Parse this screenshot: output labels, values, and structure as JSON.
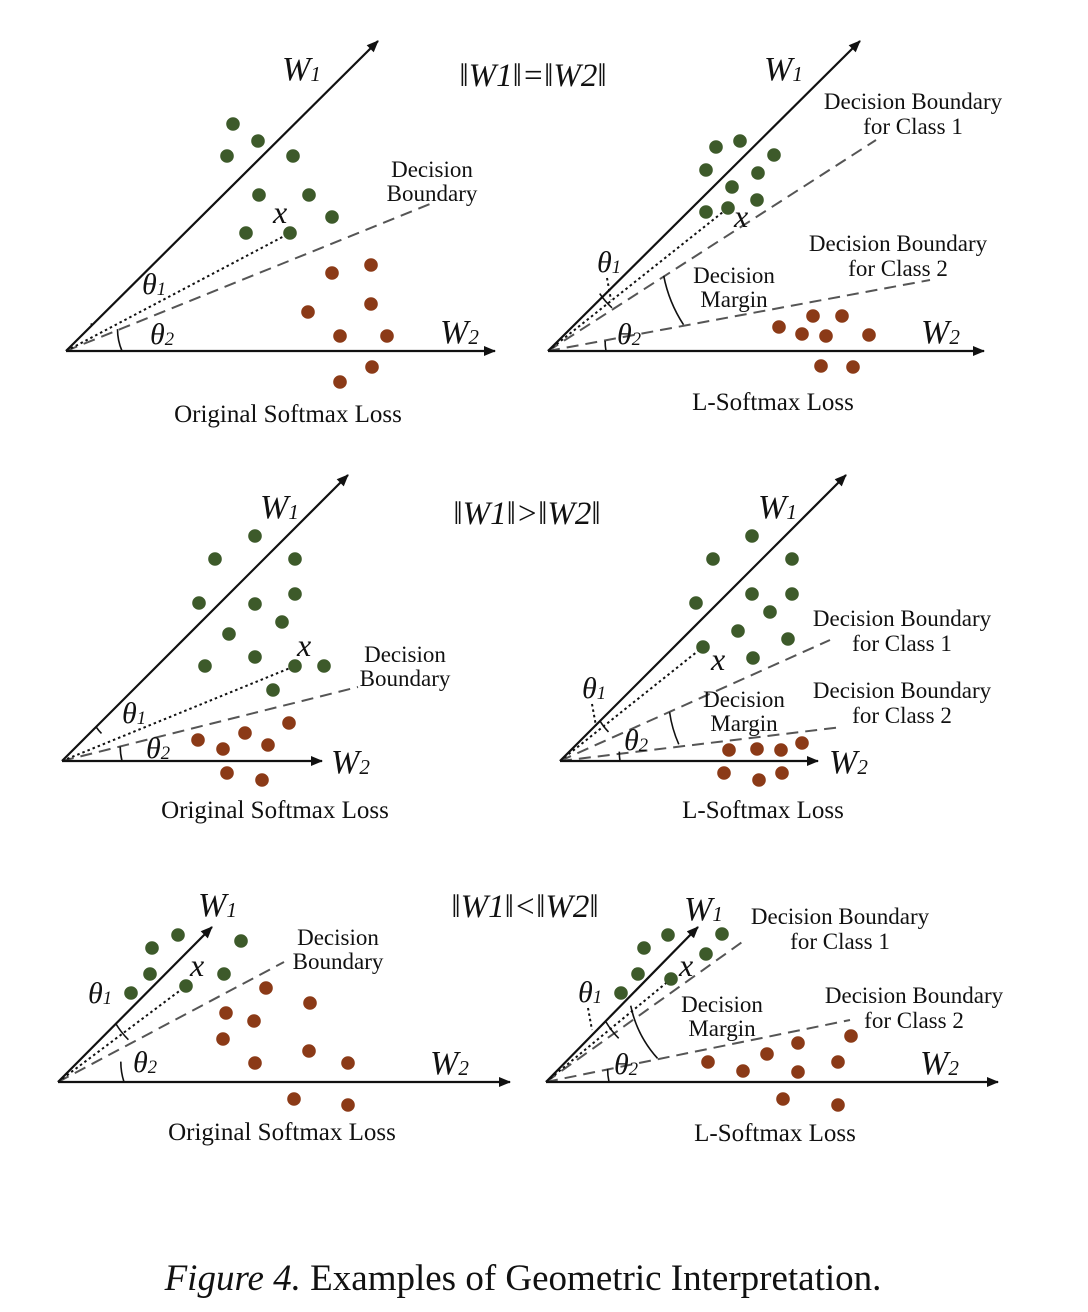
{
  "caption": {
    "prefix": "Figure 4.",
    "text": " Examples of Geometric Interpretation."
  },
  "rows": [
    {
      "norm_relation": "‖W1‖=‖W2‖"
    },
    {
      "norm_relation": "‖W1‖>‖W2‖"
    },
    {
      "norm_relation": "‖W1‖<‖W2‖"
    }
  ],
  "labels": {
    "w1": "W1",
    "w2": "W2",
    "theta1": "θ1",
    "theta2": "θ2",
    "x": "x",
    "decision": "Decision",
    "boundary": "Boundary",
    "decision_boundary": "Decision Boundary",
    "for_class_1": "for Class 1",
    "for_class_2": "for Class 2",
    "margin": "Margin",
    "original_softmax": "Original Softmax Loss",
    "l_softmax": "L-Softmax Loss"
  },
  "colors": {
    "class1": "#3d5a2a",
    "class2": "#8b3a17",
    "ink": "#111111"
  }
}
